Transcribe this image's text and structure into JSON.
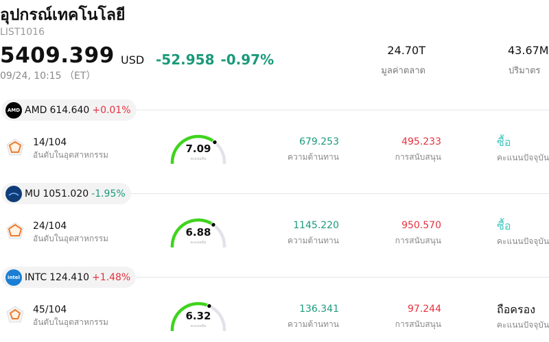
{
  "header": {
    "title": "อุปกรณ์เทคโนโลยี",
    "code": "LIST1016",
    "price": "5409.399",
    "currency": "USD",
    "change": "-52.958 -0.97%",
    "timestamp": "09/24, 10:15 （ET）",
    "market_cap": {
      "value": "24.70T",
      "label": "มูลค่าตลาด"
    },
    "volume": {
      "value": "43.67M",
      "label": "ปริมาตร"
    }
  },
  "stocks": [
    {
      "symbol": "AMD",
      "price": "614.640",
      "change_pct": "+0.01%",
      "direction": "up",
      "logo_color": "#000000",
      "logo_icon": "amd-logo-icon",
      "rank": "14/104",
      "rank_label": "อันดับในอุตสาหกรรม",
      "score": 7.09,
      "score_label": "คะแนนหุ้น",
      "resistance": "679.253",
      "resistance_label": "ความต้านทาน",
      "support": "495.233",
      "support_label": "การสนับสนุน",
      "rating": "ซื้อ",
      "rating_type": "buy",
      "rating_label": "คะแนนปัจจุบัน"
    },
    {
      "symbol": "MU",
      "price": "1051.020",
      "change_pct": "-1.95%",
      "direction": "down",
      "logo_color": "#0f3d7a",
      "logo_icon": "micron-logo-icon",
      "rank": "24/104",
      "rank_label": "อันดับในอุตสาหกรรม",
      "score": 6.88,
      "score_label": "คะแนนหุ้น",
      "resistance": "1145.220",
      "resistance_label": "ความต้านทาน",
      "support": "950.570",
      "support_label": "การสนับสนุน",
      "rating": "ซื้อ",
      "rating_type": "buy",
      "rating_label": "คะแนนปัจจุบัน"
    },
    {
      "symbol": "INTC",
      "price": "124.410",
      "change_pct": "+1.48%",
      "direction": "up",
      "logo_color": "#1a7fd4",
      "logo_icon": "intel-logo-icon",
      "rank": "45/104",
      "rank_label": "อันดับในอุตสาหกรรม",
      "score": 6.32,
      "score_label": "คะแนนหุ้น",
      "resistance": "136.341",
      "resistance_label": "ความต้านทาน",
      "support": "97.244",
      "support_label": "การสนับสนุน",
      "rating": "ถือครอง",
      "rating_type": "hold",
      "rating_label": "คะแนนปัจจุบัน"
    }
  ],
  "colors": {
    "up": "#e5303e",
    "down": "#1a9a7a",
    "gauge_fill": "#3fd41c",
    "gauge_track": "#e2e2ea",
    "buy": "#3fc6c0"
  }
}
